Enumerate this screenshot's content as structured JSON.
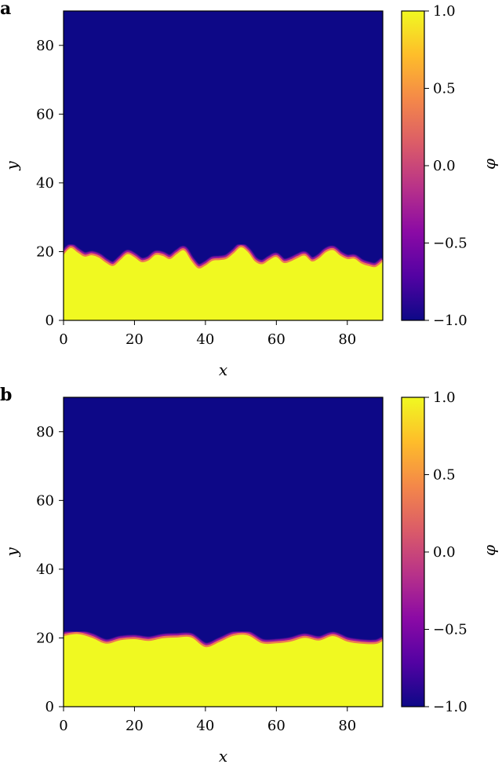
{
  "colors": {
    "low": "#0d0887",
    "high": "#f0f921",
    "colormap": [
      "#0d0887",
      "#5302a3",
      "#8b0aa5",
      "#b83289",
      "#db5c68",
      "#f48849",
      "#febd2a",
      "#f0f921"
    ]
  },
  "chart_data": [
    {
      "type": "heatmap",
      "panel_label": "a",
      "xlabel": "x",
      "ylabel": "y",
      "xlim": [
        0,
        90
      ],
      "ylim": [
        0,
        90
      ],
      "xticks": [
        0,
        20,
        40,
        60,
        80
      ],
      "yticks": [
        0,
        20,
        40,
        60,
        80
      ],
      "field_low": -1.0,
      "field_high": 1.0,
      "interface": {
        "x": [
          0,
          2,
          4,
          6,
          8,
          10,
          12,
          14,
          16,
          18,
          20,
          22,
          24,
          26,
          28,
          30,
          32,
          34,
          36,
          38,
          40,
          42,
          44,
          46,
          48,
          50,
          52,
          54,
          56,
          58,
          60,
          62,
          64,
          66,
          68,
          70,
          72,
          74,
          76,
          78,
          80,
          82,
          84,
          86,
          88,
          90
        ],
        "y": [
          19.5,
          21.5,
          20.2,
          19.0,
          19.4,
          18.7,
          17.2,
          16.3,
          18.0,
          19.7,
          18.8,
          17.4,
          17.9,
          19.5,
          19.2,
          18.3,
          19.8,
          20.8,
          17.8,
          15.6,
          16.4,
          17.8,
          18.0,
          18.4,
          20.0,
          21.7,
          20.3,
          17.6,
          16.8,
          18.0,
          18.9,
          17.2,
          17.6,
          18.6,
          19.3,
          17.6,
          18.5,
          20.3,
          20.9,
          19.3,
          18.3,
          18.4,
          17.0,
          16.3,
          16.0,
          17.6
        ]
      },
      "colorbar": {
        "label": "φ",
        "range": [
          -1.0,
          1.0
        ],
        "ticks": [
          1.0,
          0.5,
          0.0,
          -0.5,
          -1.0
        ],
        "tick_labels": [
          "1.0",
          "0.5",
          "0.0",
          "−0.5",
          "−1.0"
        ]
      }
    },
    {
      "type": "heatmap",
      "panel_label": "b",
      "xlabel": "x",
      "ylabel": "y",
      "xlim": [
        0,
        90
      ],
      "ylim": [
        0,
        90
      ],
      "xticks": [
        0,
        20,
        40,
        60,
        80
      ],
      "yticks": [
        0,
        20,
        40,
        60,
        80
      ],
      "field_low": -1.0,
      "field_high": 1.0,
      "interface": {
        "x": [
          0,
          4,
          8,
          12,
          16,
          20,
          24,
          28,
          32,
          36,
          40,
          44,
          48,
          52,
          56,
          60,
          64,
          68,
          72,
          76,
          80,
          84,
          88,
          90
        ],
        "y": [
          21.0,
          21.6,
          20.5,
          18.8,
          19.8,
          20.1,
          19.6,
          20.4,
          20.6,
          20.6,
          17.8,
          19.3,
          21.1,
          21.2,
          18.9,
          18.9,
          19.4,
          20.5,
          19.7,
          21.0,
          19.4,
          18.8,
          18.7,
          19.6
        ]
      },
      "colorbar": {
        "label": "φ",
        "range": [
          -1.0,
          1.0
        ],
        "ticks": [
          1.0,
          0.5,
          0.0,
          -0.5,
          -1.0
        ],
        "tick_labels": [
          "1.0",
          "0.5",
          "0.0",
          "−0.5",
          "−1.0"
        ]
      }
    }
  ]
}
